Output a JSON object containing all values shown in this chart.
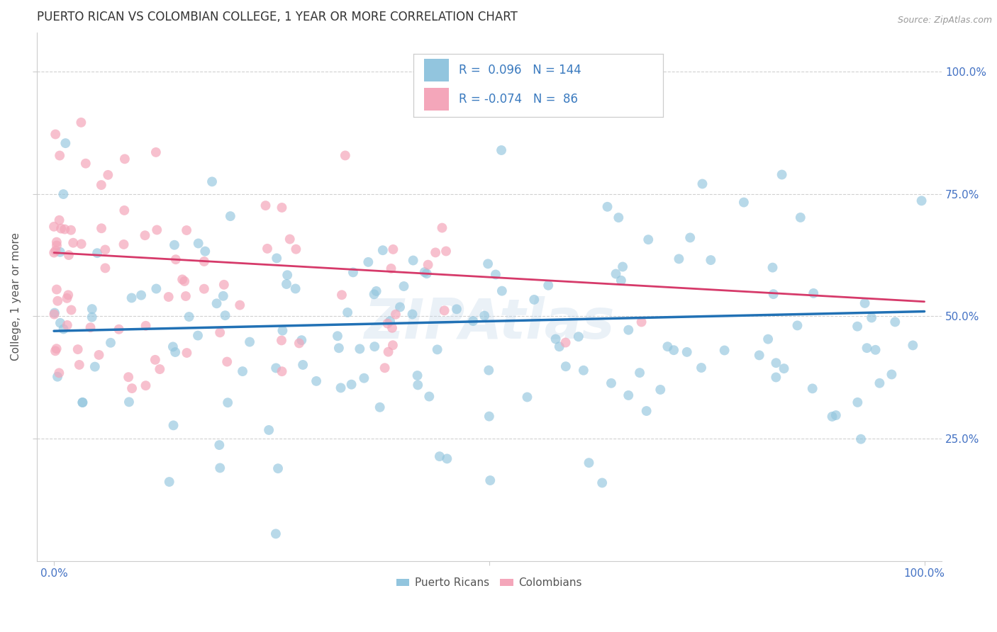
{
  "title": "PUERTO RICAN VS COLOMBIAN COLLEGE, 1 YEAR OR MORE CORRELATION CHART",
  "source": "Source: ZipAtlas.com",
  "ylabel_label": "College, 1 year or more",
  "xlim": [
    -0.02,
    1.02
  ],
  "ylim": [
    0.0,
    1.08
  ],
  "yticks": [
    0.25,
    0.5,
    0.75,
    1.0
  ],
  "ytick_labels": [
    "25.0%",
    "50.0%",
    "75.0%",
    "100.0%"
  ],
  "blue_R": 0.096,
  "blue_N": 144,
  "pink_R": -0.074,
  "pink_N": 86,
  "blue_color": "#92c5de",
  "pink_color": "#f4a6ba",
  "blue_line_color": "#2171b5",
  "pink_line_color": "#d63a6a",
  "legend_text_color": "#3a7abf",
  "watermark": "ZIPAtlas",
  "background_color": "#ffffff",
  "grid_color": "#cccccc",
  "title_color": "#333333",
  "source_color": "#999999",
  "axis_label_color": "#4472c4"
}
